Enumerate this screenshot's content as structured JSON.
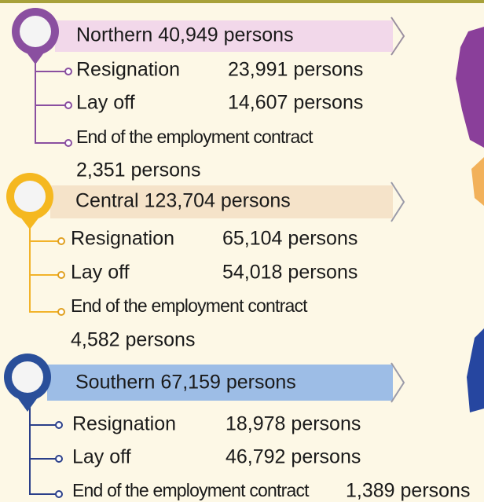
{
  "regions": [
    {
      "heading": "Northern 40,949 persons",
      "items": [
        {
          "label": "Resignation",
          "value": "23,991 persons"
        },
        {
          "label": "Lay off",
          "value": "14,607 persons"
        },
        {
          "label": "End of the employment contract",
          "value": "2,351 persons"
        }
      ]
    },
    {
      "heading": "Central 123,704 persons",
      "items": [
        {
          "label": "Resignation",
          "value": "65,104 persons"
        },
        {
          "label": "Lay off",
          "value": "54,018 persons"
        },
        {
          "label": "End of the employment contract",
          "value": "4,582 persons"
        }
      ]
    },
    {
      "heading": "Southern 67,159 persons",
      "items": [
        {
          "label": "Resignation",
          "value": "18,978 persons"
        },
        {
          "label": "Lay off",
          "value": "46,792 persons"
        },
        {
          "label": "End of the employment contract",
          "value": "1,389 persons"
        }
      ]
    }
  ]
}
